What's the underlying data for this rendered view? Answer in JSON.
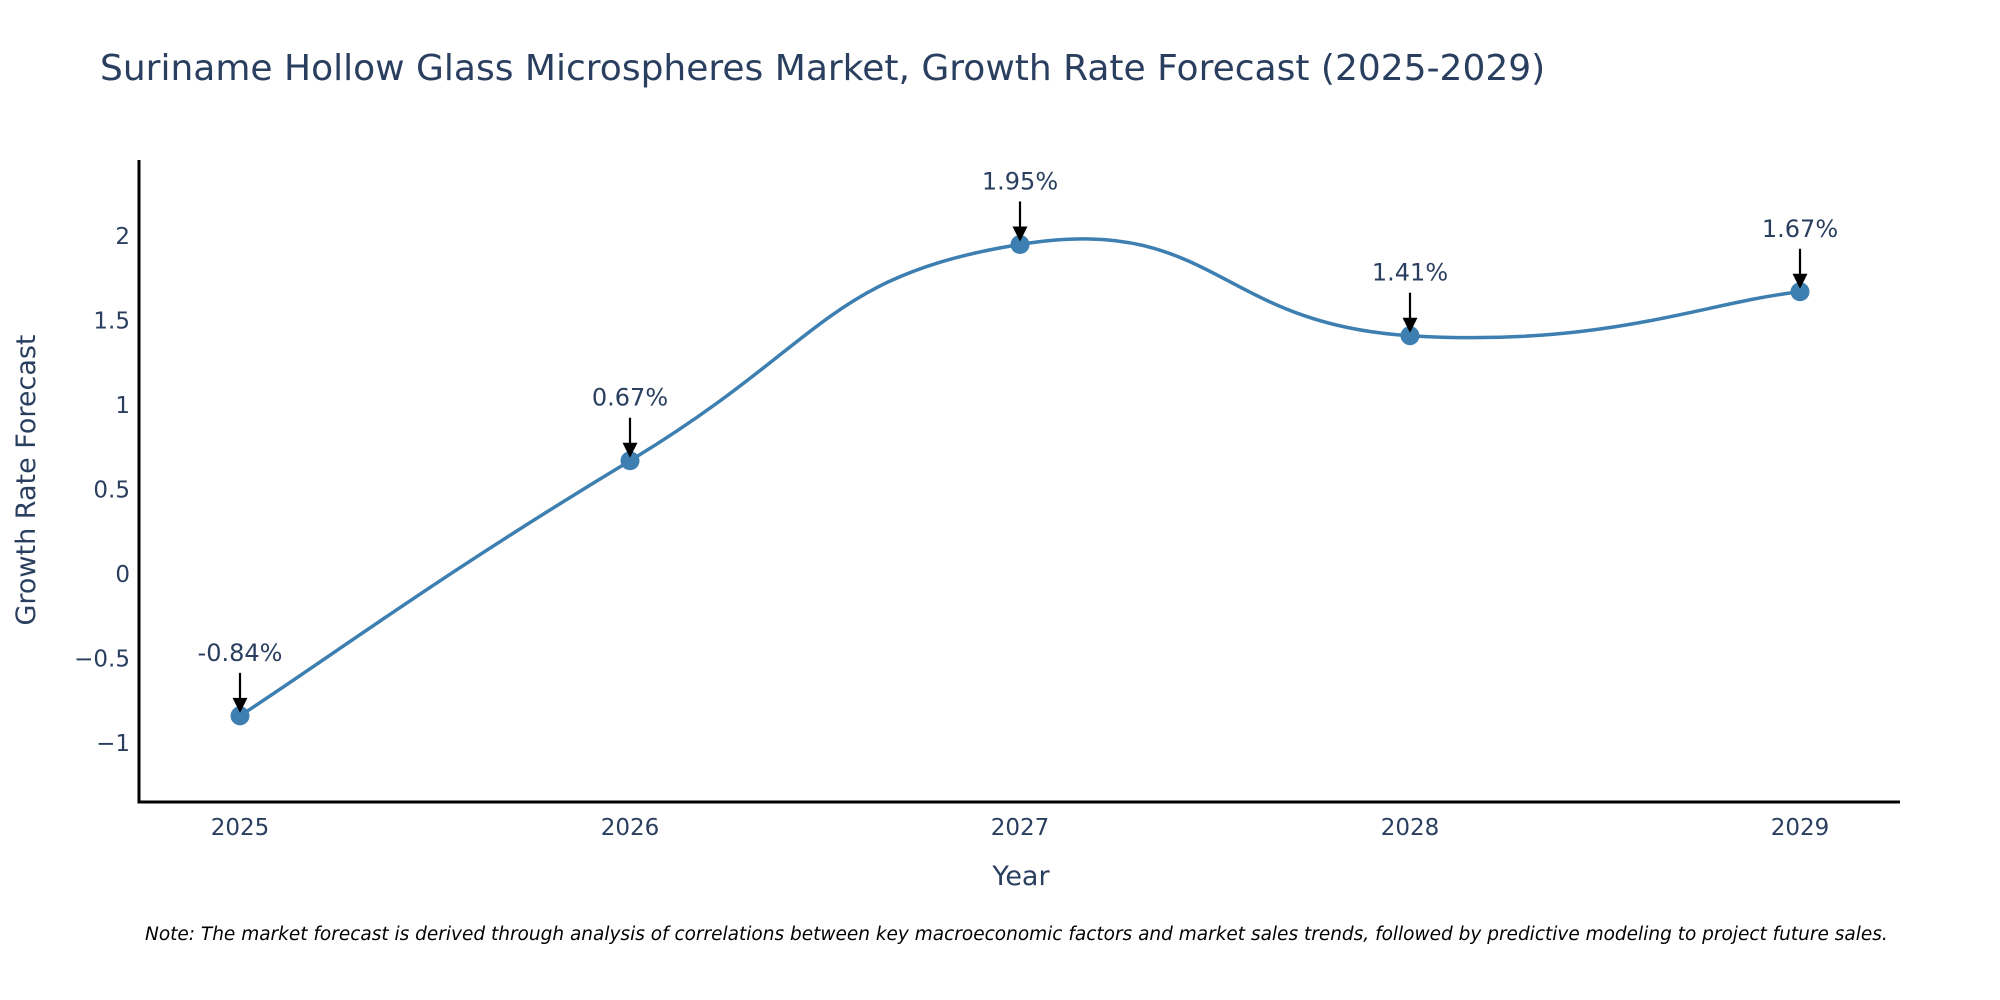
{
  "chart_data": {
    "type": "line",
    "title": "Suriname Hollow Glass Microspheres Market, Growth Rate Forecast (2025-2029)",
    "xlabel": "Year",
    "ylabel": "Growth Rate Forecast",
    "categories": [
      "2025",
      "2026",
      "2027",
      "2028",
      "2029"
    ],
    "values": [
      -0.84,
      0.67,
      1.95,
      1.41,
      1.67
    ],
    "data_labels": [
      "-0.84%",
      "0.67%",
      "1.95%",
      "1.41%",
      "1.67%"
    ],
    "ylim": [
      -1.35,
      2.45
    ],
    "yticks": [
      -1,
      -0.5,
      0,
      0.5,
      1,
      1.5,
      2
    ],
    "ytick_labels": [
      "−1",
      "−0.5",
      "0",
      "0.5",
      "1",
      "1.5",
      "2"
    ],
    "grid": false,
    "line_shape": "spline",
    "line_color": "#3d7fb0",
    "marker_color": "#3d7fb0",
    "annotation_arrow_color": "#000000",
    "axis_color": "#000000",
    "text_color": "#2a3f5f"
  },
  "note": "Note: The market forecast is derived through analysis of correlations between key macroeconomic factors and market sales trends, followed by predictive modeling to project future sales."
}
